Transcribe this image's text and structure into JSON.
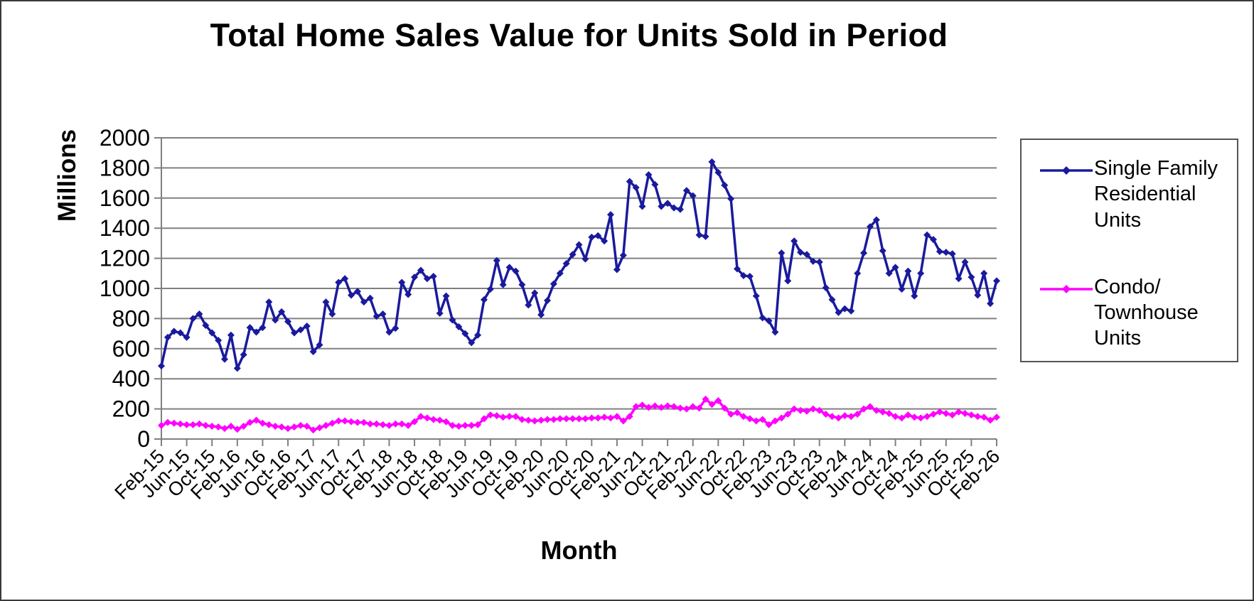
{
  "title": "Total Home Sales Value for Units Sold in Period",
  "y_axis": {
    "label": "Millions",
    "min": 0,
    "max": 2000,
    "step": 200
  },
  "x_axis": {
    "label": "Month",
    "tick_every": 4
  },
  "legend": [
    {
      "label": "Single Family Residential Units",
      "color": "#1a1a9d"
    },
    {
      "label": "Condo/ Townhouse Units",
      "color": "#ff00ff"
    }
  ],
  "colors": {
    "grid": "#808080",
    "axis": "#808080",
    "text": "#000000"
  },
  "chart_data": {
    "type": "line",
    "title": "Total Home Sales Value for Units Sold in Period",
    "xlabel": "Month",
    "ylabel": "Millions",
    "ylim": [
      0,
      2000
    ],
    "grid": true,
    "legend_position": "right",
    "x": [
      "Feb-15",
      "Mar-15",
      "Apr-15",
      "May-15",
      "Jun-15",
      "Jul-15",
      "Aug-15",
      "Sep-15",
      "Oct-15",
      "Nov-15",
      "Dec-15",
      "Jan-16",
      "Feb-16",
      "Mar-16",
      "Apr-16",
      "May-16",
      "Jun-16",
      "Jul-16",
      "Aug-16",
      "Sep-16",
      "Oct-16",
      "Nov-16",
      "Dec-16",
      "Jan-17",
      "Feb-17",
      "Mar-17",
      "Apr-17",
      "May-17",
      "Jun-17",
      "Jul-17",
      "Aug-17",
      "Sep-17",
      "Oct-17",
      "Nov-17",
      "Dec-17",
      "Jan-18",
      "Feb-18",
      "Mar-18",
      "Apr-18",
      "May-18",
      "Jun-18",
      "Jul-18",
      "Aug-18",
      "Sep-18",
      "Oct-18",
      "Nov-18",
      "Dec-18",
      "Jan-19",
      "Feb-19",
      "Mar-19",
      "Apr-19",
      "May-19",
      "Jun-19",
      "Jul-19",
      "Aug-19",
      "Sep-19",
      "Oct-19",
      "Nov-19",
      "Dec-19",
      "Jan-20",
      "Feb-20",
      "Mar-20",
      "Apr-20",
      "May-20",
      "Jun-20",
      "Jul-20",
      "Aug-20",
      "Sep-20",
      "Oct-20",
      "Nov-20",
      "Dec-20",
      "Jan-21",
      "Feb-21",
      "Mar-21",
      "Apr-21",
      "May-21",
      "Jun-21",
      "Jul-21",
      "Aug-21",
      "Sep-21",
      "Oct-21",
      "Nov-21",
      "Dec-21",
      "Jan-22",
      "Feb-22",
      "Mar-22",
      "Apr-22",
      "May-22",
      "Jun-22",
      "Jul-22",
      "Aug-22",
      "Sep-22",
      "Oct-22",
      "Nov-22",
      "Dec-22",
      "Jan-23",
      "Feb-23",
      "Mar-23",
      "Apr-23",
      "May-23",
      "Jun-23",
      "Jul-23",
      "Aug-23",
      "Sep-23",
      "Oct-23",
      "Nov-23",
      "Dec-23",
      "Jan-24",
      "Feb-24",
      "Mar-24",
      "Apr-24",
      "May-24",
      "Jun-24",
      "Jul-24",
      "Aug-24",
      "Sep-24",
      "Oct-24",
      "Nov-24",
      "Dec-24",
      "Jan-25",
      "Feb-25",
      "Mar-25",
      "Apr-25",
      "May-25",
      "Jun-25",
      "Jul-25",
      "Aug-25",
      "Sep-25",
      "Oct-25",
      "Nov-25",
      "Dec-25",
      "Jan-26",
      "Feb-26"
    ],
    "series": [
      {
        "name": "Single Family Residential Units",
        "color": "#1a1a9d",
        "values": [
          485,
          675,
          715,
          705,
          675,
          800,
          830,
          755,
          705,
          655,
          530,
          690,
          470,
          560,
          740,
          710,
          740,
          910,
          790,
          845,
          780,
          705,
          725,
          750,
          580,
          625,
          910,
          830,
          1040,
          1065,
          955,
          980,
          910,
          935,
          815,
          830,
          710,
          735,
          1040,
          960,
          1075,
          1120,
          1065,
          1080,
          835,
          950,
          790,
          745,
          700,
          640,
          690,
          925,
          995,
          1185,
          1025,
          1140,
          1115,
          1025,
          890,
          970,
          825,
          920,
          1030,
          1100,
          1165,
          1225,
          1290,
          1195,
          1340,
          1350,
          1315,
          1490,
          1125,
          1220,
          1710,
          1670,
          1545,
          1755,
          1690,
          1545,
          1565,
          1535,
          1525,
          1650,
          1615,
          1355,
          1345,
          1840,
          1770,
          1685,
          1595,
          1130,
          1085,
          1080,
          950,
          805,
          785,
          710,
          1235,
          1050,
          1315,
          1240,
          1225,
          1180,
          1175,
          1005,
          925,
          840,
          865,
          850,
          1100,
          1235,
          1410,
          1455,
          1250,
          1100,
          1140,
          995,
          1115,
          950,
          1100,
          1355,
          1325,
          1245,
          1240,
          1230,
          1065,
          1175,
          1075,
          955,
          1100,
          900,
          1050
        ]
      },
      {
        "name": "Condo/ Townhouse Units",
        "color": "#ff00ff",
        "values": [
          90,
          110,
          105,
          100,
          95,
          95,
          100,
          90,
          85,
          80,
          70,
          85,
          65,
          85,
          110,
          125,
          105,
          95,
          85,
          80,
          70,
          80,
          90,
          85,
          60,
          75,
          90,
          105,
          120,
          120,
          115,
          110,
          110,
          100,
          100,
          95,
          90,
          100,
          100,
          90,
          115,
          150,
          140,
          130,
          125,
          115,
          90,
          85,
          90,
          90,
          95,
          135,
          160,
          155,
          145,
          150,
          150,
          130,
          125,
          120,
          125,
          130,
          130,
          135,
          135,
          135,
          135,
          135,
          140,
          140,
          145,
          140,
          150,
          120,
          150,
          215,
          225,
          210,
          220,
          210,
          220,
          215,
          205,
          200,
          215,
          205,
          265,
          230,
          255,
          205,
          165,
          175,
          150,
          135,
          120,
          130,
          95,
          120,
          140,
          165,
          200,
          190,
          185,
          200,
          190,
          165,
          150,
          140,
          155,
          150,
          165,
          200,
          215,
          190,
          180,
          170,
          150,
          140,
          160,
          145,
          140,
          150,
          165,
          180,
          170,
          160,
          180,
          170,
          160,
          150,
          145,
          125,
          145
        ]
      }
    ]
  }
}
